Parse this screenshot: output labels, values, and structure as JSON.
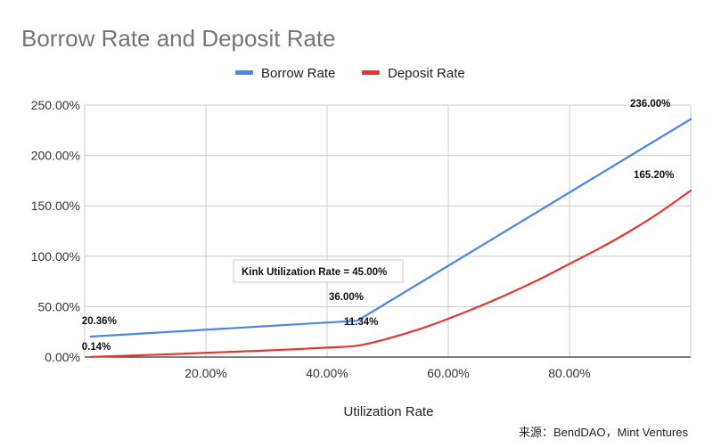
{
  "chart_data": {
    "type": "line",
    "title": "Borrow Rate and Deposit Rate",
    "xlabel": "Utilization Rate",
    "ylabel": "",
    "xlim": [
      0,
      100
    ],
    "ylim": [
      0,
      250
    ],
    "x_ticks": [
      {
        "value": 20,
        "label": "20.00%"
      },
      {
        "value": 40,
        "label": "40.00%"
      },
      {
        "value": 60,
        "label": "60.00%"
      },
      {
        "value": 80,
        "label": "80.00%"
      }
    ],
    "y_ticks": [
      {
        "value": 0,
        "label": "0.00%"
      },
      {
        "value": 50,
        "label": "50.00%"
      },
      {
        "value": 100,
        "label": "100.00%"
      },
      {
        "value": 150,
        "label": "150.00%"
      },
      {
        "value": 200,
        "label": "200.00%"
      },
      {
        "value": 250,
        "label": "250.00%"
      }
    ],
    "grid": true,
    "legend_position": "top-center",
    "series": [
      {
        "name": "Borrow Rate",
        "color": "#4a86e8",
        "points": [
          [
            1,
            20.36
          ],
          [
            45,
            36.0
          ],
          [
            100,
            236.0
          ]
        ],
        "data_labels": [
          {
            "x": 1,
            "y": 20.36,
            "text": "20.36%"
          },
          {
            "x": 45,
            "y": 36.0,
            "text": "36.00%"
          },
          {
            "x": 100,
            "y": 236.0,
            "text": "236.00%"
          }
        ]
      },
      {
        "name": "Deposit Rate",
        "color": "#e0382f",
        "points": [
          [
            1,
            0.14
          ],
          [
            10,
            1.9
          ],
          [
            20,
            4.2
          ],
          [
            30,
            6.5
          ],
          [
            40,
            9.4
          ],
          [
            45,
            11.34
          ],
          [
            50,
            18.3
          ],
          [
            55,
            27.2
          ],
          [
            60,
            38.0
          ],
          [
            65,
            50.0
          ],
          [
            70,
            63.0
          ],
          [
            75,
            77.0
          ],
          [
            80,
            92.5
          ],
          [
            85,
            108.0
          ],
          [
            90,
            125.0
          ],
          [
            95,
            144.0
          ],
          [
            100,
            165.2
          ]
        ],
        "data_labels": [
          {
            "x": 1,
            "y": 0.14,
            "text": "0.14%"
          },
          {
            "x": 45,
            "y": 11.34,
            "text": "11.34%"
          },
          {
            "x": 100,
            "y": 165.2,
            "text": "165.20%"
          }
        ]
      }
    ],
    "annotation": {
      "text": "Kink Utilization Rate = 45.00%"
    },
    "source": "来源：BendDAO，Mint Ventures"
  }
}
